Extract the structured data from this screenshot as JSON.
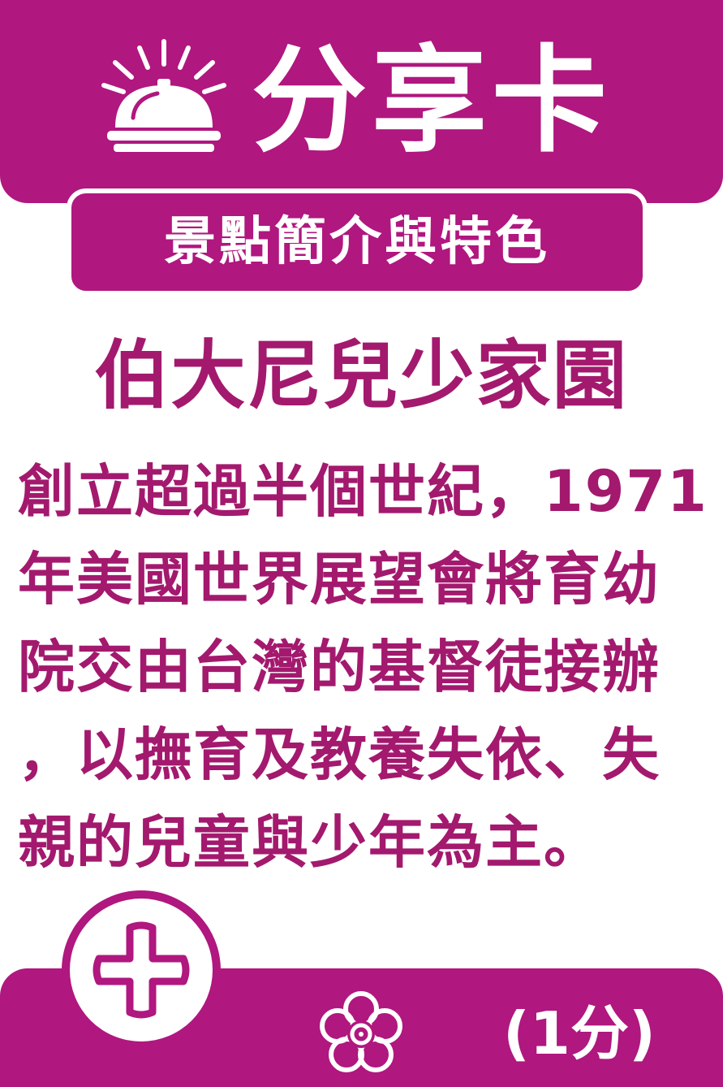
{
  "header": {
    "title": "分享卡",
    "icon": "service-bell-icon"
  },
  "subtitle": "景點簡介與特色",
  "place_name": "伯大尼兒少家園",
  "description_lines": [
    "創立超過半個世紀，1971",
    "年美國世界展望會將育幼",
    "院交由台灣的基督徒接辦",
    "，以撫育及教養失依、失",
    "親的兒童與少年為主。"
  ],
  "footer": {
    "plus_icon": "plus-icon",
    "flower_icon": "flower-icon",
    "points": "(1分)"
  },
  "colors": {
    "brand": "#b0177f",
    "text": "#a3196e",
    "background": "#ffffff"
  }
}
